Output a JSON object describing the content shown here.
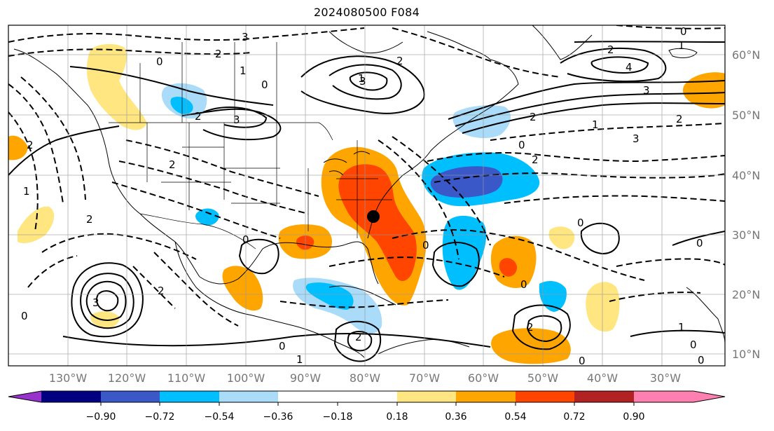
{
  "title": "2024080500 F084",
  "lon_labels": [
    "130°W",
    "120°W",
    "110°W",
    "100°W",
    "90°W",
    "80°W",
    "70°W",
    "60°W",
    "50°W",
    "40°W",
    "30°W"
  ],
  "lat_labels": [
    "60°N",
    "50°N",
    "40°N",
    "30°N",
    "20°N",
    "10°N"
  ],
  "colorbar": {
    "ticks": [
      "−0.90",
      "−0.72",
      "−0.54",
      "−0.36",
      "−0.18",
      "0.18",
      "0.36",
      "0.54",
      "0.72",
      "0.90"
    ],
    "colors": [
      "#9932cc",
      "#000080",
      "#3a58c8",
      "#00bfff",
      "#aadcfa",
      "#ffffff",
      "#ffe680",
      "#ffa500",
      "#ff4500",
      "#b22222",
      "#ff80b0"
    ]
  },
  "contour_labels": [
    "0",
    "2",
    "1",
    "2",
    "3",
    "2",
    "3",
    "3",
    "0",
    "1",
    "2",
    "4",
    "3",
    "0",
    "2",
    "3",
    "1",
    "2",
    "2",
    "0",
    "2",
    "3",
    "0",
    "2",
    "1",
    "2",
    "2",
    "0",
    "0",
    "0",
    "0",
    "0",
    "0",
    "0",
    "1",
    "1",
    "2",
    "0",
    "0",
    "2",
    "1"
  ],
  "marker": {
    "lon": "80°W",
    "lat": "33°N",
    "color": "#000000"
  }
}
